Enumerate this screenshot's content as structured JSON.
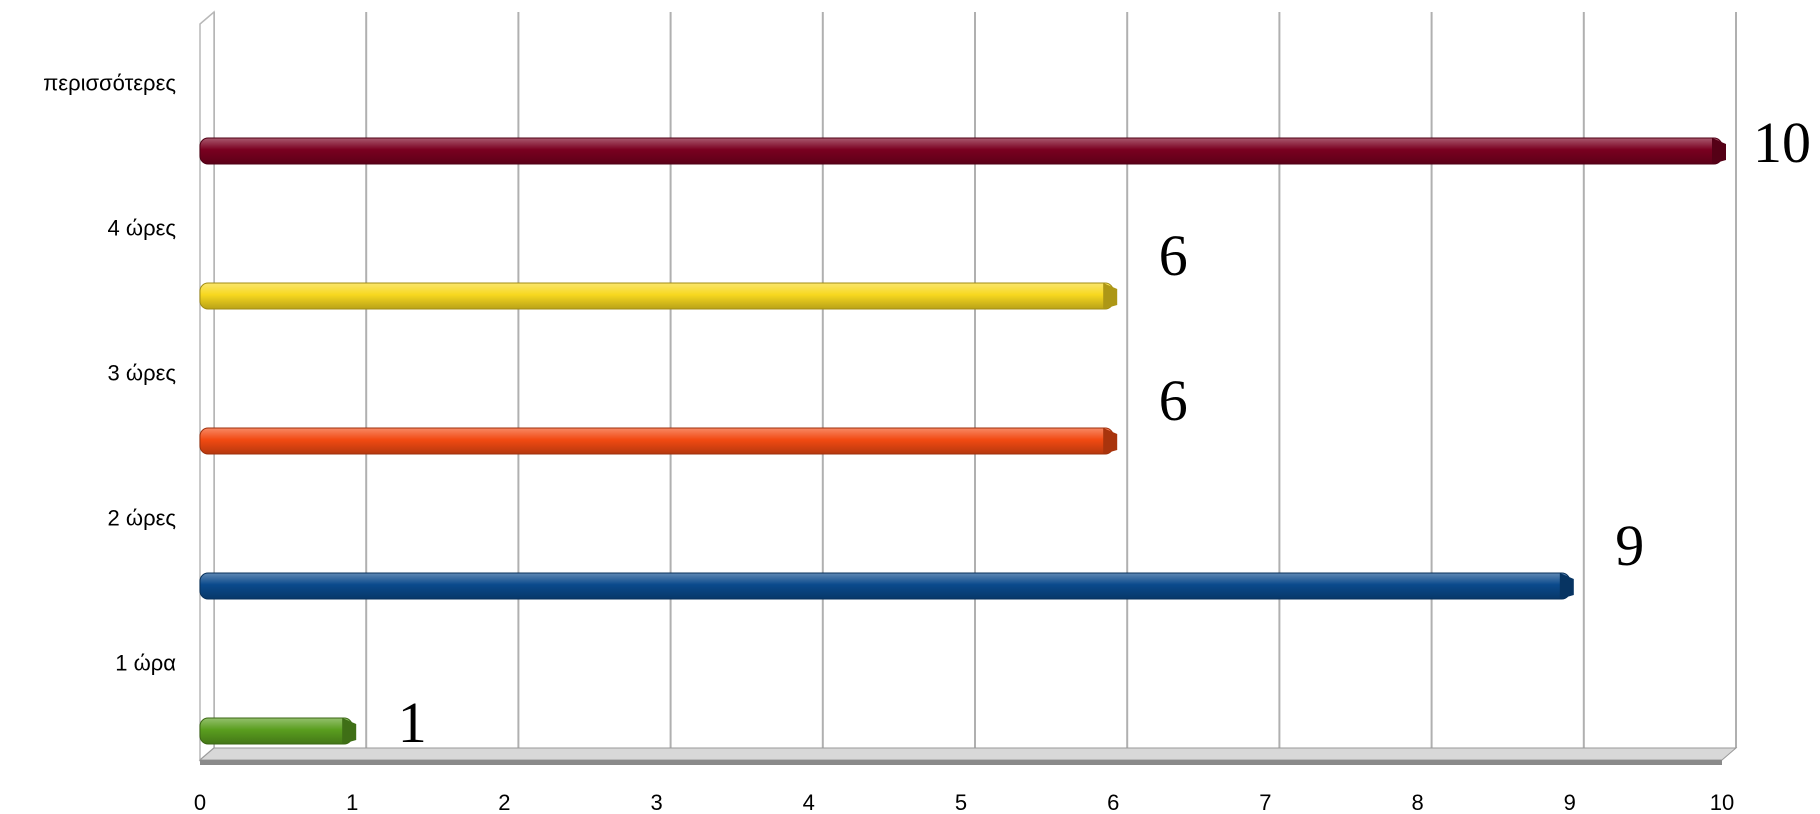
{
  "chart_data": {
    "type": "bar",
    "orientation": "horizontal",
    "categories": [
      "1 ώρα",
      "2  ώρες",
      "3 ώρες",
      "4 ώρες",
      "περισσότερες"
    ],
    "values": [
      1,
      9,
      6,
      6,
      10
    ],
    "data_labels": [
      "1",
      "9",
      "6",
      "6",
      "10"
    ],
    "colors": [
      "#5a9e1f",
      "#0a4a8c",
      "#f24a12",
      "#f7d81f",
      "#7a0020"
    ],
    "x_ticks": [
      "0",
      "1",
      "2",
      "3",
      "4",
      "5",
      "6",
      "7",
      "8",
      "9",
      "10"
    ],
    "xlim": [
      0,
      10
    ],
    "grid": true,
    "legend": "none",
    "title": "",
    "xlabel": "",
    "ylabel": ""
  }
}
